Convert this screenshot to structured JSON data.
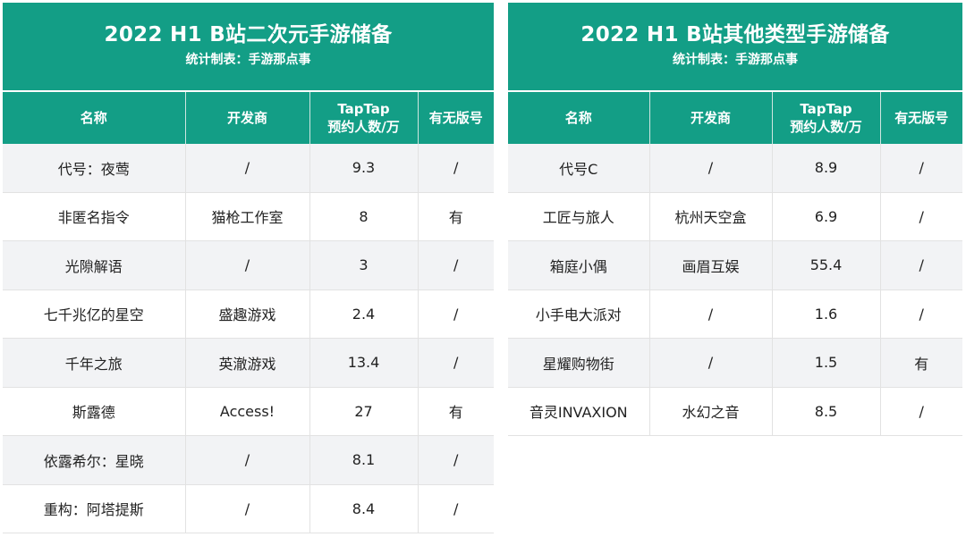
{
  "left": {
    "title": "2022 H1 B站二次元手游储备",
    "subtitle": "统计制表：手游那点事",
    "headers": {
      "name": "名称",
      "developer": "开发商",
      "taptap_line1": "TapTap",
      "taptap_line2": "预约人数/万",
      "license": "有无版号"
    },
    "rows": [
      {
        "name": "代号：夜莺",
        "developer": "/",
        "reservations": "9.3",
        "license": "/"
      },
      {
        "name": "非匿名指令",
        "developer": "猫枪工作室",
        "reservations": "8",
        "license": "有"
      },
      {
        "name": "光隙解语",
        "developer": "/",
        "reservations": "3",
        "license": "/"
      },
      {
        "name": "七千兆亿的星空",
        "developer": "盛趣游戏",
        "reservations": "2.4",
        "license": "/"
      },
      {
        "name": "千年之旅",
        "developer": "英澈游戏",
        "reservations": "13.4",
        "license": "/"
      },
      {
        "name": "斯露德",
        "developer": "Access!",
        "reservations": "27",
        "license": "有"
      },
      {
        "name": "依露希尔：星晓",
        "developer": "/",
        "reservations": "8.1",
        "license": "/"
      },
      {
        "name": "重构：阿塔提斯",
        "developer": "/",
        "reservations": "8.4",
        "license": "/"
      }
    ]
  },
  "right": {
    "title": "2022 H1 B站其他类型手游储备",
    "subtitle": "统计制表：手游那点事",
    "headers": {
      "name": "名称",
      "developer": "开发商",
      "taptap_line1": "TapTap",
      "taptap_line2": "预约人数/万",
      "license": "有无版号"
    },
    "rows": [
      {
        "name": "代号C",
        "developer": "/",
        "reservations": "8.9",
        "license": "/"
      },
      {
        "name": "工匠与旅人",
        "developer": "杭州天空盒",
        "reservations": "6.9",
        "license": "/"
      },
      {
        "name": "箱庭小偶",
        "developer": "画眉互娱",
        "reservations": "55.4",
        "license": "/"
      },
      {
        "name": "小手电大派对",
        "developer": "/",
        "reservations": "1.6",
        "license": "/"
      },
      {
        "name": "星耀购物街",
        "developer": "/",
        "reservations": "1.5",
        "license": "有"
      },
      {
        "name": "音灵INVAXION",
        "developer": "水幻之音",
        "reservations": "8.5",
        "license": "/"
      }
    ]
  },
  "colors": {
    "header_green": "#139e86",
    "row_stripe": "#f2f3f5"
  }
}
